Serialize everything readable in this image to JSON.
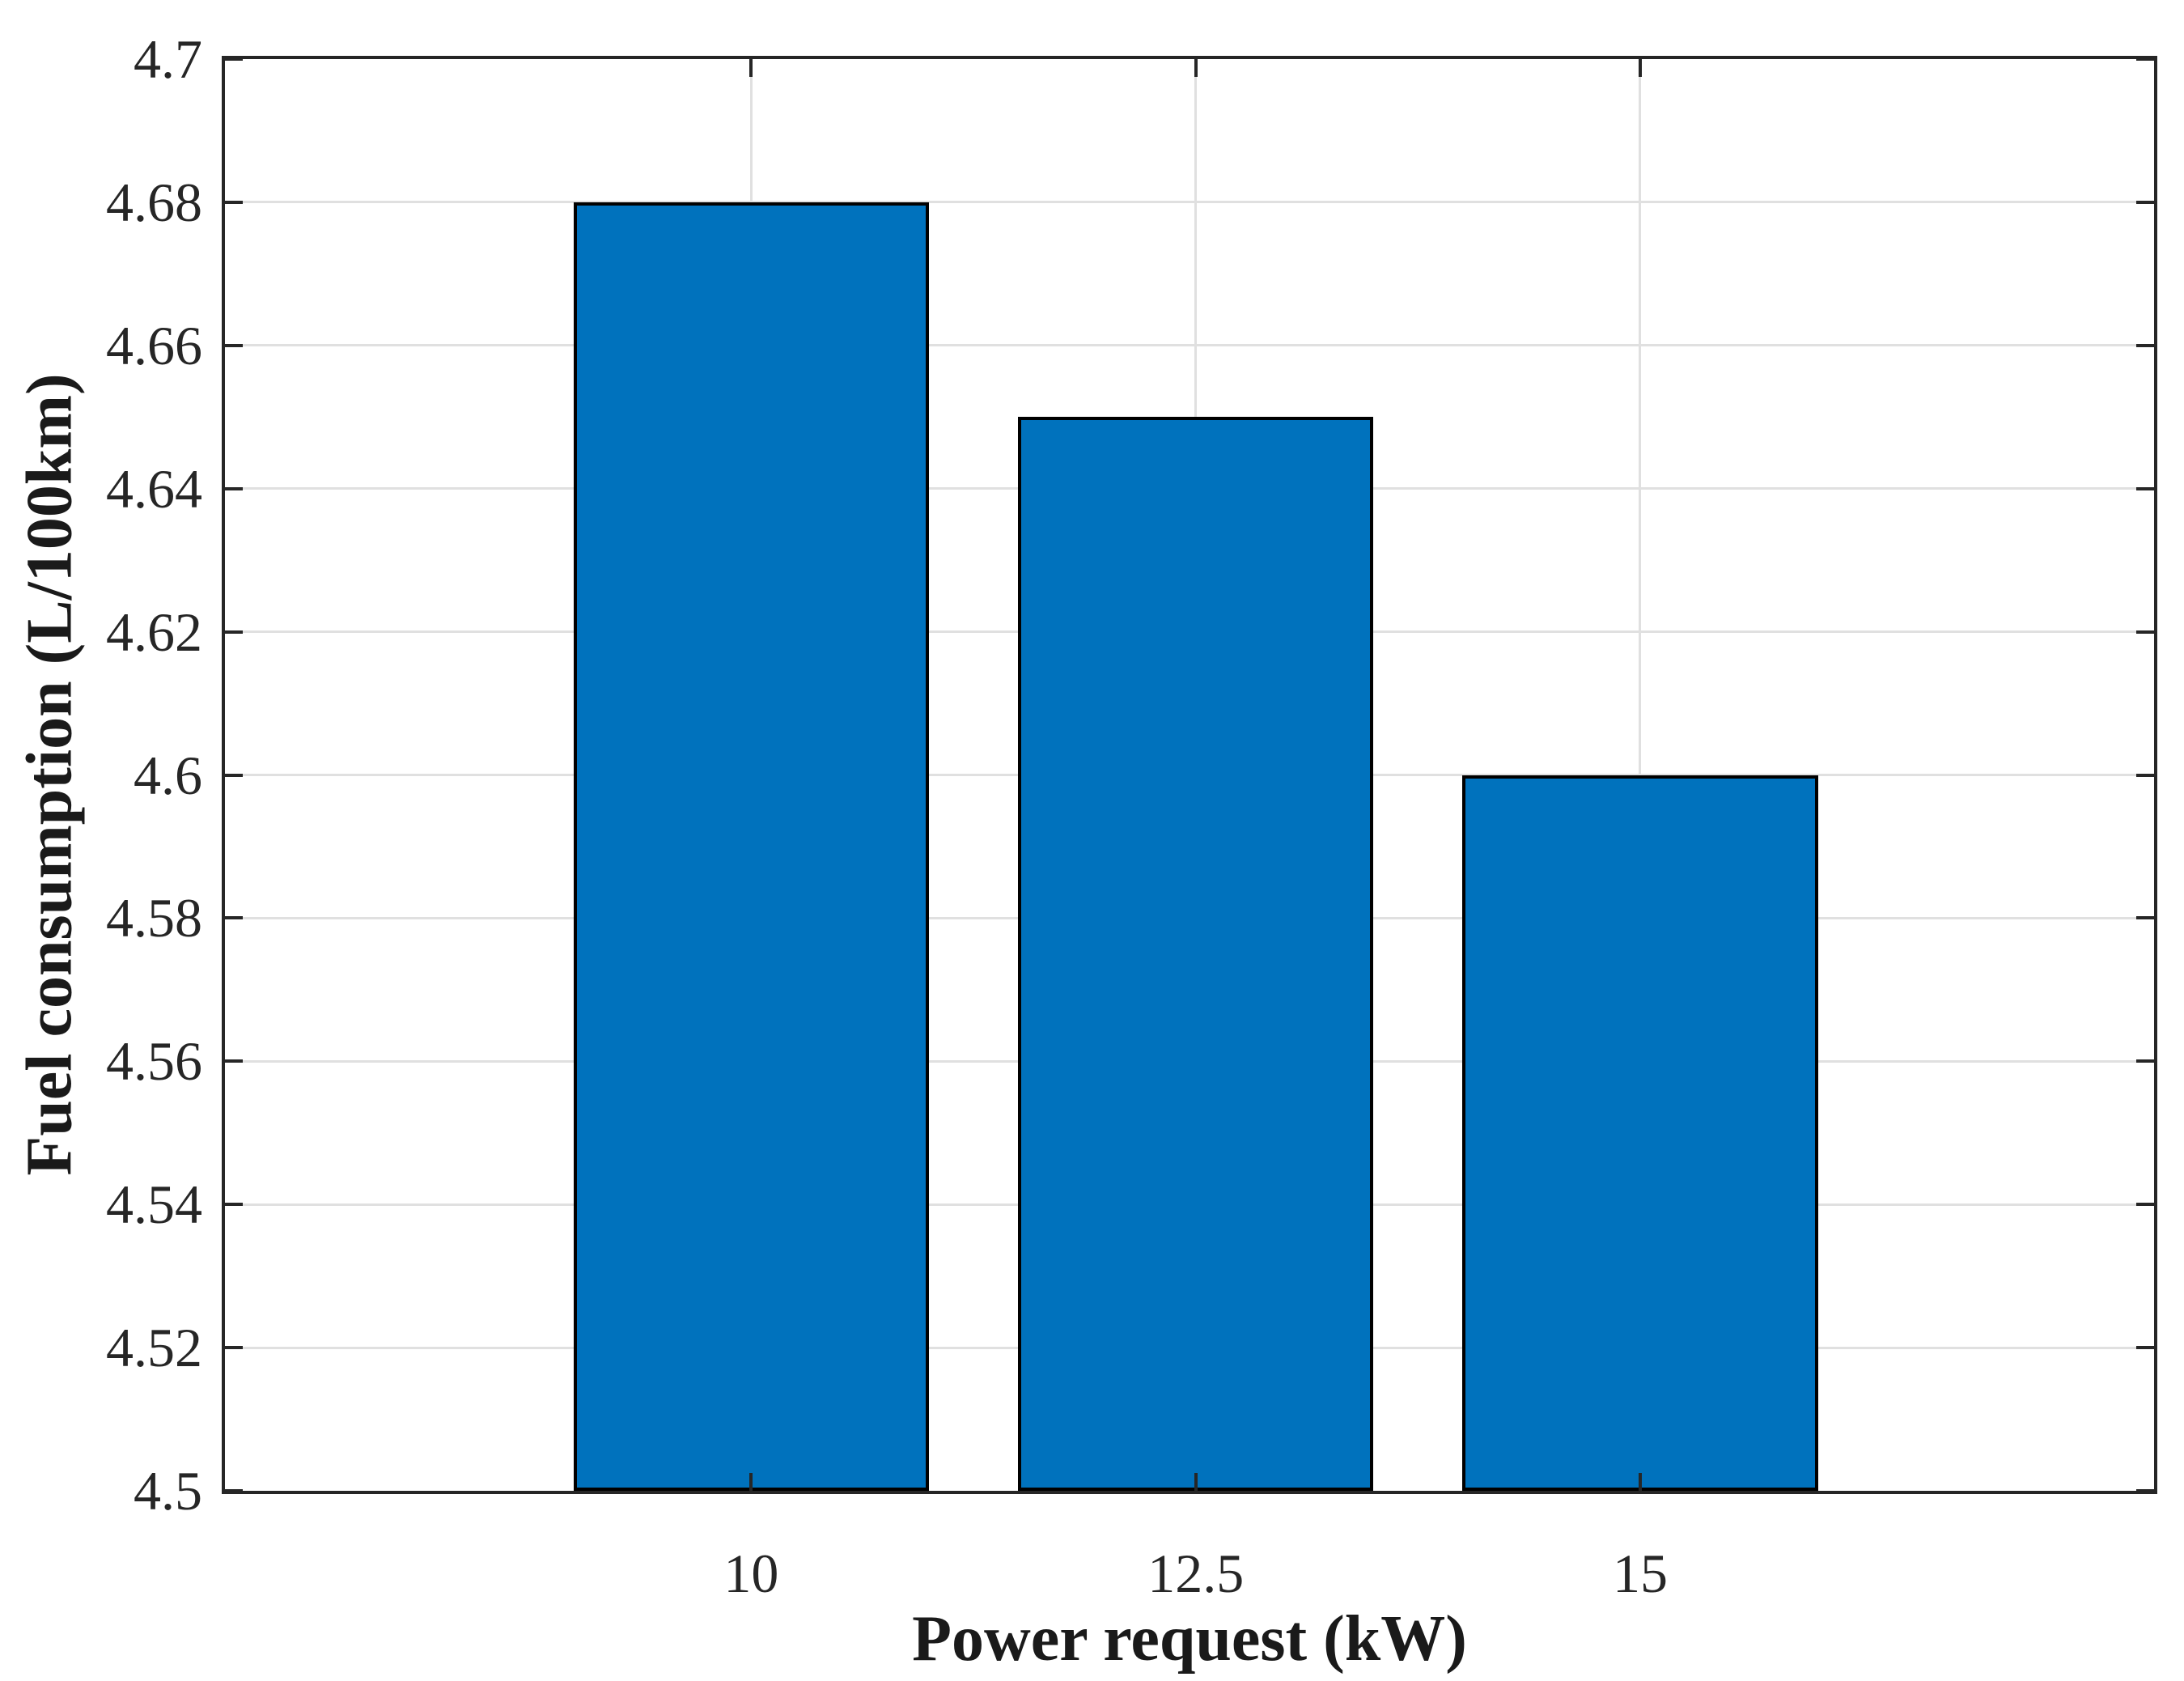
{
  "chart_data": {
    "type": "bar",
    "title": "",
    "xlabel": "Power request (kW)",
    "ylabel": "Fuel consumption (L/100km)",
    "categories": [
      10,
      12.5,
      15
    ],
    "category_labels": [
      "10",
      "12.5",
      "15"
    ],
    "values": [
      4.68,
      4.65,
      4.6
    ],
    "series_name": "Fuel consumption",
    "ylim": [
      4.5,
      4.7
    ],
    "ytick_step": 0.02,
    "ytick_labels": [
      "4.5",
      "4.52",
      "4.54",
      "4.56",
      "4.58",
      "4.6",
      "4.62",
      "4.64",
      "4.66",
      "4.68",
      "4.7"
    ],
    "xlim": [
      7.04,
      17.89
    ],
    "bar_width_x": 2.0,
    "grid": "on",
    "legend_position": "none",
    "bar_fill_color": "#0072BD",
    "bar_edge_color": "#000000",
    "axis_color": "#262626",
    "grid_color": "#e0e0e0",
    "background_color": "#ffffff"
  }
}
